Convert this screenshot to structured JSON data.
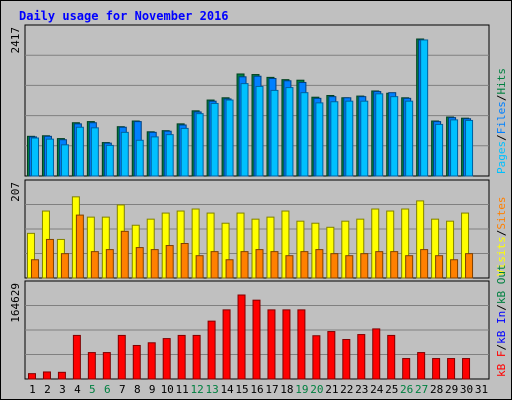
{
  "chart_data": {
    "type": "bar",
    "title": "Daily usage for November 2016",
    "categories": [
      "1",
      "2",
      "3",
      "4",
      "5",
      "6",
      "7",
      "8",
      "9",
      "10",
      "11",
      "12",
      "13",
      "14",
      "15",
      "16",
      "17",
      "18",
      "19",
      "20",
      "21",
      "22",
      "23",
      "24",
      "25",
      "26",
      "27",
      "28",
      "29",
      "30",
      "31"
    ],
    "weekend_days": [
      "5",
      "6",
      "12",
      "13",
      "19",
      "20",
      "26",
      "27"
    ],
    "panels": [
      {
        "id": "pages-files-hits",
        "ymax_label": "2417",
        "ymax": 2417,
        "right_label": [
          "Pages",
          "/",
          "Files",
          "/",
          "Hits"
        ],
        "series": [
          {
            "name": "Hits",
            "color": "#008040",
            "values": [
              700,
              710,
              660,
              940,
              960,
              590,
              870,
              970,
              780,
              800,
              920,
              1150,
              1340,
              1380,
              1800,
              1790,
              1740,
              1700,
              1690,
              1390,
              1420,
              1380,
              1410,
              1500,
              1460,
              1380,
              2417,
              970,
              1040,
              1020,
              0
            ]
          },
          {
            "name": "Files",
            "color": "#0080ff",
            "values": [
              690,
              700,
              640,
              920,
              940,
              580,
              860,
              960,
              770,
              790,
              900,
              1130,
              1320,
              1360,
              1750,
              1760,
              1720,
              1680,
              1650,
              1370,
              1400,
              1380,
              1400,
              1490,
              1470,
              1370,
              2400,
              960,
              1030,
              1010,
              0
            ]
          },
          {
            "name": "Pages",
            "color": "#00c0ff",
            "values": [
              670,
              650,
              550,
              860,
              850,
              540,
              770,
              630,
              690,
              730,
              840,
              1100,
              1280,
              1340,
              1630,
              1580,
              1510,
              1560,
              1470,
              1290,
              1310,
              1320,
              1320,
              1450,
              1400,
              1320,
              2400,
              910,
              990,
              980,
              0
            ]
          }
        ]
      },
      {
        "id": "visits-sites",
        "ymax_label": "207",
        "ymax": 207,
        "right_label": [
          "Visits",
          "/",
          "Sites"
        ],
        "series": [
          {
            "name": "Visits",
            "color": "#ffff00",
            "values": [
              110,
              165,
              95,
              200,
              150,
              150,
              180,
              130,
              145,
              160,
              165,
              170,
              160,
              135,
              160,
              145,
              150,
              165,
              140,
              135,
              125,
              140,
              145,
              170,
              165,
              170,
              190,
              145,
              140,
              160,
              0
            ]
          },
          {
            "name": "Sites",
            "color": "#ff8000",
            "values": [
              45,
              95,
              60,
              155,
              65,
              70,
              115,
              75,
              70,
              80,
              85,
              55,
              65,
              45,
              65,
              70,
              65,
              55,
              65,
              70,
              60,
              55,
              60,
              65,
              65,
              55,
              70,
              55,
              45,
              60,
              0
            ]
          }
        ]
      },
      {
        "id": "kb",
        "ymax_label": "164629",
        "ymax": 164629,
        "right_label": [
          "kB F",
          "/",
          "kB In",
          "/",
          "kB Out"
        ],
        "series": [
          {
            "name": "kB F",
            "color": "#ff0000",
            "values": [
              10500,
              13800,
              13100,
              85400,
              51800,
              51800,
              85400,
              65700,
              71000,
              79200,
              85400,
              85400,
              113400,
              135500,
              164629,
              154500,
              135500,
              135500,
              135500,
              84800,
              93000,
              77400,
              87100,
              98200,
              85400,
              40100,
              51800,
              40100,
              40100,
              40100,
              0
            ]
          }
        ]
      }
    ]
  }
}
